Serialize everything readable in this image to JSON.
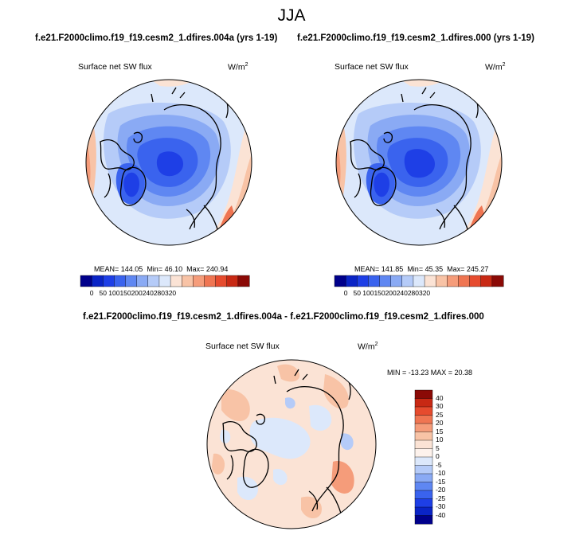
{
  "page_title": "JJA",
  "panels": [
    {
      "run_title": "f.e21.F2000climo.f19_f19.cesm2_1.dfires.004a (yrs 1-19)",
      "variable": "Surface net SW flux",
      "units_base": "W/m",
      "units_exp": "2",
      "mean_label": "MEAN= 144.05",
      "min_label": "Min=  46.10",
      "max_label": "Max= 240.94",
      "colorbar_ticks": [
        "0",
        "50",
        "100",
        "150",
        "200",
        "240",
        "280",
        "320"
      ]
    },
    {
      "run_title": "f.e21.F2000climo.f19_f19.cesm2_1.dfires.000 (yrs 1-19)",
      "variable": "Surface net SW flux",
      "units_base": "W/m",
      "units_exp": "2",
      "mean_label": "MEAN= 141.85",
      "min_label": "Min=  45.35",
      "max_label": "Max= 245.27",
      "colorbar_ticks": [
        "0",
        "50",
        "100",
        "150",
        "200",
        "240",
        "280",
        "320"
      ]
    }
  ],
  "difference": {
    "run_title": "f.e21.F2000climo.f19_f19.cesm2_1.dfires.004a - f.e21.F2000climo.f19_f19.cesm2_1.dfires.000",
    "variable": "Surface net SW flux",
    "units_base": "W/m",
    "units_exp": "2",
    "minmax_label": "MIN = -13.23  MAX =  20.38",
    "colorbar_ticks": [
      "40",
      "30",
      "25",
      "20",
      "15",
      "10",
      "5",
      "0",
      "-5",
      "-10",
      "-15",
      "-20",
      "-25",
      "-30",
      "-40"
    ]
  },
  "colors": {
    "abs_colorbar": [
      "#00008b",
      "#0a24c6",
      "#1e3fe6",
      "#3a63ee",
      "#5f87f2",
      "#8aaaf4",
      "#b5cbf8",
      "#dce8fb",
      "#fbe3d5",
      "#f8c3a6",
      "#f59c7a",
      "#ef7552",
      "#e64b2e",
      "#c82914",
      "#8b0a06"
    ],
    "diff_colorbar": [
      "#8b0a06",
      "#c82914",
      "#e64b2e",
      "#ef7552",
      "#f59c7a",
      "#f8c3a6",
      "#fbe3d5",
      "#fdf2ec",
      "#dce8fb",
      "#b5cbf8",
      "#8aaaf4",
      "#5f87f2",
      "#3a63ee",
      "#1e3fe6",
      "#0a24c6",
      "#00008b"
    ]
  }
}
